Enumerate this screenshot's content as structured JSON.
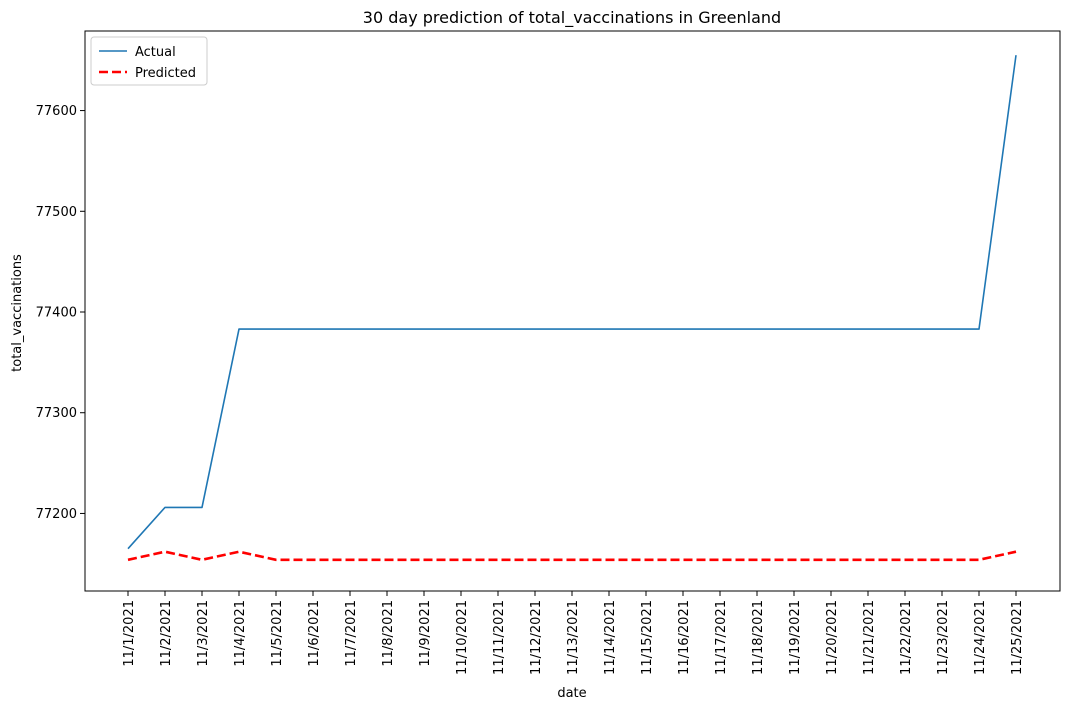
{
  "chart_data": {
    "type": "line",
    "title": "30 day prediction of total_vaccinations in Greenland",
    "xlabel": "date",
    "ylabel": "total_vaccinations",
    "x": [
      "11/1/2021",
      "11/2/2021",
      "11/3/2021",
      "11/4/2021",
      "11/5/2021",
      "11/6/2021",
      "11/7/2021",
      "11/8/2021",
      "11/9/2021",
      "11/10/2021",
      "11/11/2021",
      "11/12/2021",
      "11/13/2021",
      "11/14/2021",
      "11/15/2021",
      "11/16/2021",
      "11/17/2021",
      "11/18/2021",
      "11/19/2021",
      "11/20/2021",
      "11/21/2021",
      "11/22/2021",
      "11/23/2021",
      "11/24/2021",
      "11/25/2021"
    ],
    "yticks": [
      77200,
      77300,
      77400,
      77500,
      77600
    ],
    "ylim": [
      77123,
      77679
    ],
    "legend_position": "top-left",
    "grid": false,
    "series": [
      {
        "name": "Actual",
        "color": "#1f77b4",
        "style": "solid",
        "values": [
          77165,
          77206,
          77206,
          77383,
          77383,
          77383,
          77383,
          77383,
          77383,
          77383,
          77383,
          77383,
          77383,
          77383,
          77383,
          77383,
          77383,
          77383,
          77383,
          77383,
          77383,
          77383,
          77383,
          77383,
          77655
        ]
      },
      {
        "name": "Predicted",
        "color": "#ff0000",
        "style": "dashed",
        "values": [
          77154,
          77162,
          77154,
          77162,
          77154,
          77154,
          77154,
          77154,
          77154,
          77154,
          77154,
          77154,
          77154,
          77154,
          77154,
          77154,
          77154,
          77154,
          77154,
          77154,
          77154,
          77154,
          77154,
          77154,
          77162
        ]
      }
    ]
  }
}
